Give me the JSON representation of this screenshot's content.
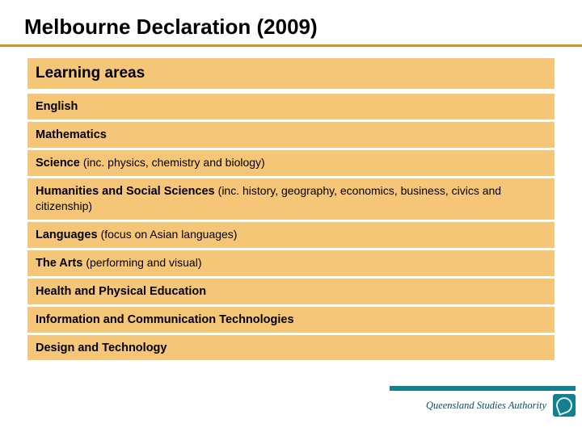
{
  "colors": {
    "title_underline": "#d88f2a",
    "row_bg": "#f6c678",
    "footer_bar": "#13808f",
    "logo_bg": "#13808f"
  },
  "title": "Melbourne Declaration (2009)",
  "header": "Learning areas",
  "rows": [
    {
      "bold": "English",
      "detail": ""
    },
    {
      "bold": "Mathematics",
      "detail": ""
    },
    {
      "bold": "Science ",
      "detail": "(inc. physics, chemistry and biology)"
    },
    {
      "bold": "Humanities and Social Sciences ",
      "detail": "(inc. history, geography, economics, business, civics and citizenship)"
    },
    {
      "bold": "Languages ",
      "detail": "(focus on Asian languages)"
    },
    {
      "bold": "The Arts ",
      "detail": "(performing and visual)"
    },
    {
      "bold": "Health and Physical Education",
      "detail": ""
    },
    {
      "bold": "Information and Communication Technologies",
      "detail": ""
    },
    {
      "bold": "Design and Technology",
      "detail": ""
    }
  ],
  "footer_brand": "Queensland Studies Authority"
}
